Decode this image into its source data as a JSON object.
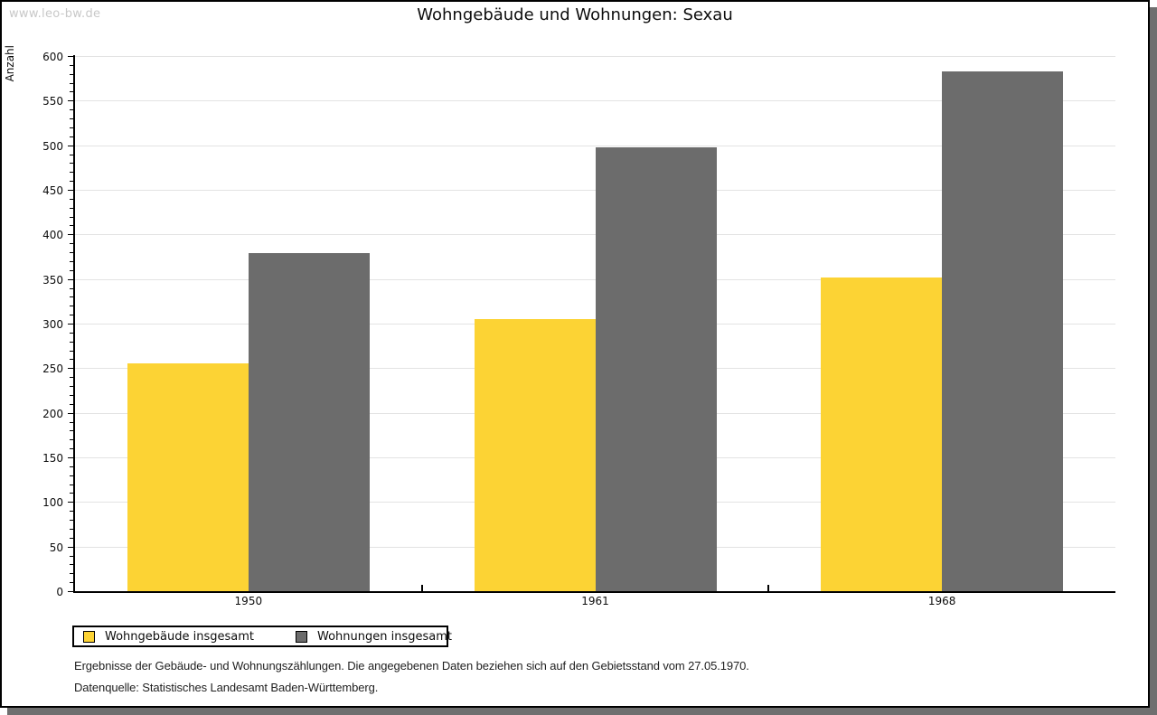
{
  "watermark": "www.leo-bw.de",
  "title": "Wohngebäude und Wohnungen: Sexau",
  "chart_data": {
    "type": "bar",
    "title": "Wohngebäude und Wohnungen: Sexau",
    "ylabel": "Anzahl",
    "xlabel": "",
    "categories": [
      "1950",
      "1961",
      "1968"
    ],
    "series": [
      {
        "name": "Wohngebäude insgesamt",
        "color": "#fcd334",
        "values": [
          255,
          305,
          352
        ]
      },
      {
        "name": "Wohnungen insgesamt",
        "color": "#6c6c6c",
        "values": [
          379,
          498,
          583
        ]
      }
    ],
    "ylim": [
      0,
      600
    ],
    "ytick_major": 50,
    "ytick_minor": 10,
    "grid": true,
    "gridline_color": "#e3e3e3",
    "legend_position": "bottom-left"
  },
  "footnotes": {
    "line1": "Ergebnisse der Gebäude- und Wohnungszählungen. Die angegebenen Daten beziehen sich auf den Gebietsstand vom 27.05.1970.",
    "line2": "Datenquelle: Statistisches Landesamt Baden-Württemberg."
  }
}
